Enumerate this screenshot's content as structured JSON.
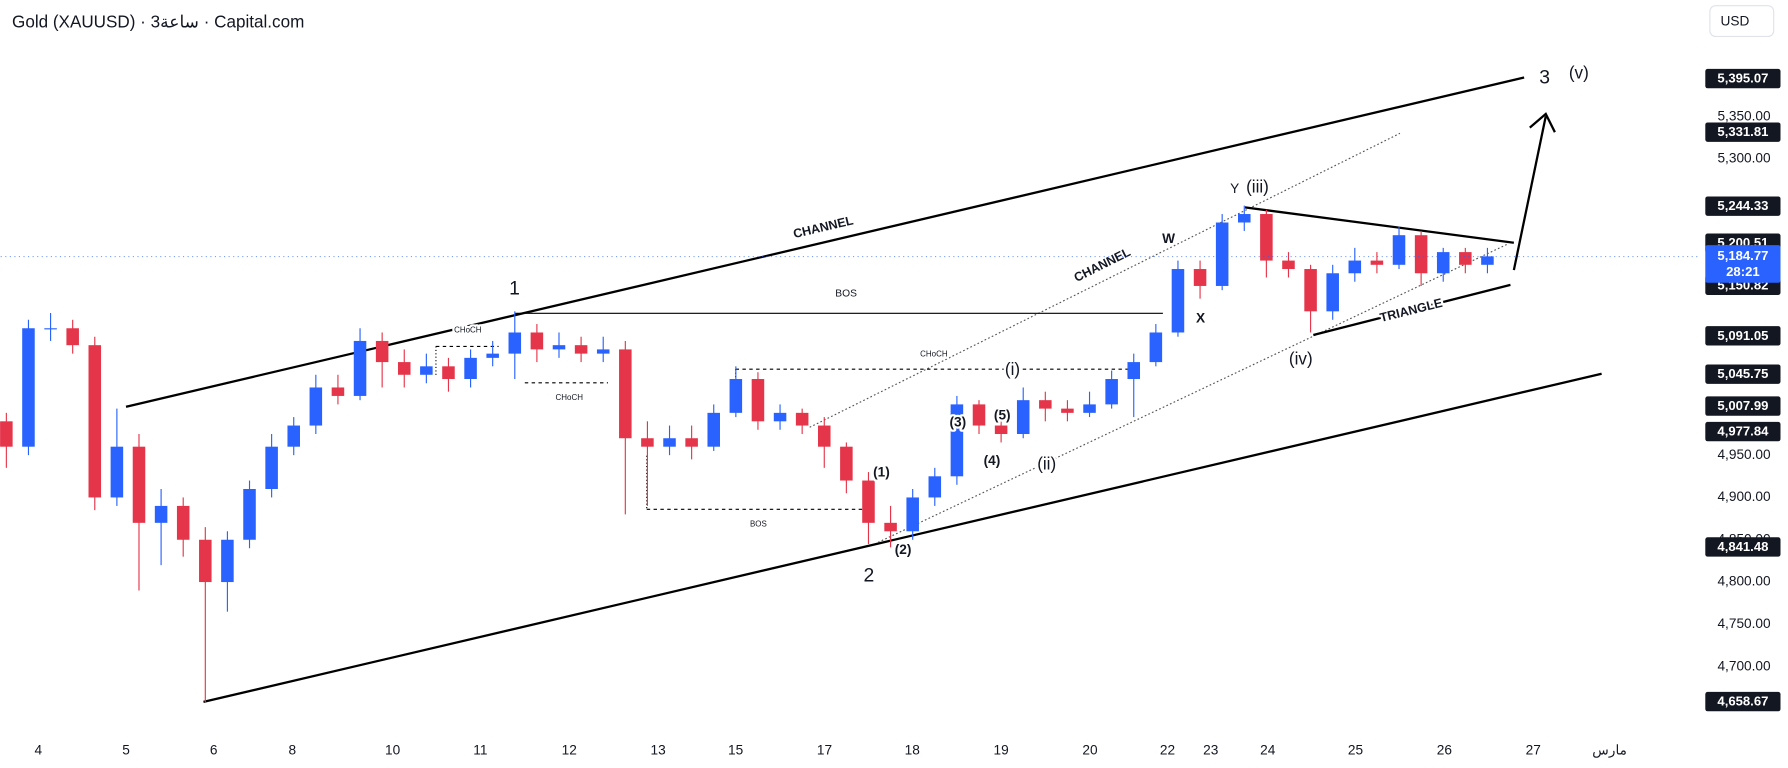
{
  "chart_data": {
    "type": "candlestick",
    "title": "Gold (XAUUSD) · 3ساعة · Capital.com",
    "currency": "USD",
    "up_color": "#2962ff",
    "down_color": "#e5354a",
    "ylim": [
      4626,
      5488
    ],
    "yticks": [
      {
        "value": 5350,
        "label": "5,350.00"
      },
      {
        "value": 5300,
        "label": "5,300.00"
      },
      {
        "value": 4950,
        "label": "4,950.00"
      },
      {
        "value": 4900,
        "label": "4,900.00"
      },
      {
        "value": 4850,
        "label": "4,850.00"
      },
      {
        "value": 4800,
        "label": "4,800.00"
      },
      {
        "value": 4750,
        "label": "4,750.00"
      },
      {
        "value": 4700,
        "label": "4,700.00"
      }
    ],
    "price_tags": [
      {
        "value": 5395.07,
        "label": "5,395.07"
      },
      {
        "value": 5331.81,
        "label": "5,331.81"
      },
      {
        "value": 5244.33,
        "label": "5,244.33"
      },
      {
        "value": 5200.51,
        "label": "5,200.51"
      },
      {
        "value": 5150.82,
        "label": "5,150.82"
      },
      {
        "value": 5091.05,
        "label": "5,091.05"
      },
      {
        "value": 5045.75,
        "label": "5,045.75"
      },
      {
        "value": 5007.99,
        "label": "5,007.99"
      },
      {
        "value": 4977.84,
        "label": "4,977.84"
      },
      {
        "value": 4841.48,
        "label": "4,841.48"
      },
      {
        "value": 4658.67,
        "label": "4,658.67"
      }
    ],
    "last_price": {
      "value": 5184.77,
      "label": "5,184.77",
      "countdown": "28:21"
    },
    "x_labels": [
      4,
      5,
      6,
      8,
      10,
      11,
      12,
      13,
      15,
      17,
      18,
      19,
      20,
      22,
      23,
      24,
      25,
      26,
      27,
      "مارس"
    ],
    "annotations": [
      "1",
      "2",
      "3",
      "(v)",
      "Y",
      "(iii)",
      "W",
      "X",
      "(iv)",
      "(i)",
      "(ii)",
      "(1)",
      "(2)",
      "(3)",
      "(4)",
      "(5)",
      "CHANNEL",
      "CHANNEL",
      "TRIANGLE",
      "BOS",
      "BOS",
      "CHoCH",
      "CHoCH",
      "CHoCH"
    ],
    "candles": [
      [
        4990,
        5000,
        4935,
        4960
      ],
      [
        4960,
        5110,
        4950,
        5100
      ],
      [
        5100,
        5118,
        5085,
        5100
      ],
      [
        5100,
        5110,
        5070,
        5080
      ],
      [
        5080,
        5090,
        4885,
        4900
      ],
      [
        4900,
        5005,
        4890,
        4960
      ],
      [
        4960,
        4975,
        4790,
        4870
      ],
      [
        4870,
        4910,
        4820,
        4890
      ],
      [
        4890,
        4900,
        4830,
        4850
      ],
      [
        4850,
        4865,
        4658,
        4800
      ],
      [
        4800,
        4860,
        4765,
        4850
      ],
      [
        4850,
        4920,
        4840,
        4910
      ],
      [
        4910,
        4975,
        4900,
        4960
      ],
      [
        4960,
        4995,
        4950,
        4985
      ],
      [
        4985,
        5045,
        4975,
        5030
      ],
      [
        5030,
        5045,
        5010,
        5020
      ],
      [
        5020,
        5100,
        5015,
        5085
      ],
      [
        5085,
        5095,
        5030,
        5060
      ],
      [
        5060,
        5075,
        5030,
        5045
      ],
      [
        5045,
        5070,
        5035,
        5055
      ],
      [
        5055,
        5065,
        5025,
        5040
      ],
      [
        5040,
        5075,
        5030,
        5065
      ],
      [
        5065,
        5085,
        5055,
        5070
      ],
      [
        5070,
        5120,
        5040,
        5095
      ],
      [
        5095,
        5105,
        5060,
        5075
      ],
      [
        5075,
        5095,
        5065,
        5080
      ],
      [
        5080,
        5090,
        5060,
        5070
      ],
      [
        5070,
        5090,
        5060,
        5075
      ],
      [
        5075,
        5085,
        4880,
        4970
      ],
      [
        4970,
        4990,
        4890,
        4960
      ],
      [
        4960,
        4985,
        4950,
        4970
      ],
      [
        4970,
        4985,
        4945,
        4960
      ],
      [
        4960,
        5010,
        4955,
        5000
      ],
      [
        5000,
        5055,
        4995,
        5040
      ],
      [
        5040,
        5048,
        4980,
        4990
      ],
      [
        4990,
        5010,
        4980,
        5000
      ],
      [
        5000,
        5005,
        4975,
        4985
      ],
      [
        4985,
        4995,
        4935,
        4960
      ],
      [
        4960,
        4965,
        4905,
        4920
      ],
      [
        4920,
        4930,
        4845,
        4870
      ],
      [
        4870,
        4890,
        4841,
        4860
      ],
      [
        4860,
        4910,
        4850,
        4900
      ],
      [
        4900,
        4935,
        4890,
        4925
      ],
      [
        4925,
        5020,
        4915,
        5010
      ],
      [
        5010,
        5015,
        4975,
        4985
      ],
      [
        4985,
        4995,
        4965,
        4975
      ],
      [
        4975,
        5030,
        4970,
        5015
      ],
      [
        5015,
        5025,
        4990,
        5005
      ],
      [
        5005,
        5015,
        4990,
        5000
      ],
      [
        5000,
        5025,
        4995,
        5010
      ],
      [
        5010,
        5050,
        5005,
        5040
      ],
      [
        5040,
        5070,
        4995,
        5060
      ],
      [
        5060,
        5105,
        5055,
        5095
      ],
      [
        5095,
        5180,
        5090,
        5170
      ],
      [
        5170,
        5180,
        5135,
        5150
      ],
      [
        5150,
        5235,
        5145,
        5225
      ],
      [
        5225,
        5245,
        5215,
        5235
      ],
      [
        5235,
        5240,
        5160,
        5180
      ],
      [
        5180,
        5190,
        5160,
        5170
      ],
      [
        5170,
        5175,
        5095,
        5120
      ],
      [
        5120,
        5175,
        5110,
        5165
      ],
      [
        5165,
        5195,
        5155,
        5180
      ],
      [
        5180,
        5190,
        5165,
        5175
      ],
      [
        5175,
        5220,
        5170,
        5210
      ],
      [
        5210,
        5215,
        5150,
        5165
      ],
      [
        5165,
        5195,
        5155,
        5190
      ],
      [
        5190,
        5195,
        5165,
        5175
      ],
      [
        5175,
        5195,
        5165,
        5185
      ]
    ]
  }
}
